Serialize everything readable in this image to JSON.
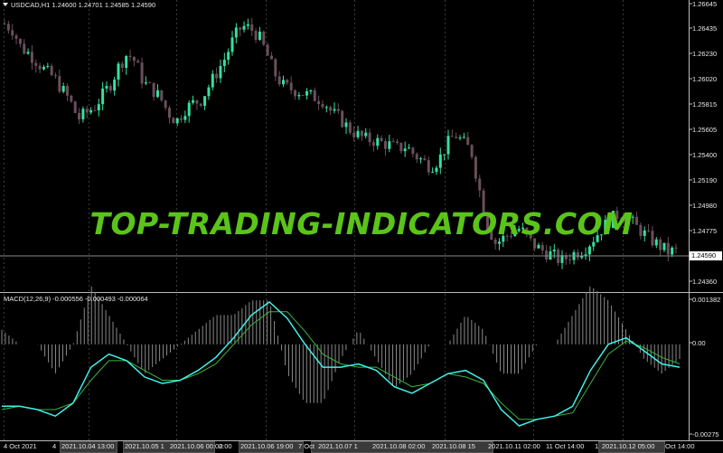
{
  "header": {
    "symbol_timeframe": "USDCAD,H1",
    "ohlc": "1.24600 1.24701 1.24585 1.24590"
  },
  "watermark": "TOP-TRADING-INDICATORS.COM",
  "current_price": "1.24590",
  "price_axis": {
    "labels": [
      "1.26645",
      "1.26435",
      "1.26230",
      "1.26020",
      "1.25815",
      "1.25605",
      "1.25400",
      "1.25190",
      "1.24980",
      "1.24775",
      "1.24360"
    ]
  },
  "macd": {
    "title": "MACD(12,26,9) -0.000556 -0.000493 -0.000064",
    "axis_labels": [
      "0.001382",
      "0.00",
      "-0.00275"
    ]
  },
  "time_axis": {
    "labels": [
      "4 Oct 2021",
      "4",
      "2021.10.04 13:00",
      "2021.10.05 1",
      "2021.10.06 00:00",
      "2:00",
      "2021.10.06 19:00",
      "7 Oct",
      "2021.10.07 1",
      "2021.10.08 02:00",
      "2021.10.08 15",
      "2021.10.11 02:00",
      "11 Oct 14:00",
      "1",
      "2021.10.12 05:00",
      "Oct 14:00"
    ]
  },
  "colors": {
    "bull": "#35e0a0",
    "bear": "#6a4e5c",
    "macd_line": "#40f0e8",
    "signal_line": "#3cb43c",
    "histogram": "#8a8a8a",
    "grid": "#3a3a3a",
    "watermark": "#5bc41a"
  },
  "chart_data": [
    {
      "type": "candlestick",
      "title": "USDCAD,H1",
      "ylim": [
        1.2425,
        1.267
      ],
      "close_series": [
        1.265,
        1.2645,
        1.263,
        1.2625,
        1.2618,
        1.261,
        1.2605,
        1.2595,
        1.2585,
        1.257,
        1.2575,
        1.258,
        1.259,
        1.26,
        1.2615,
        1.2625,
        1.2618,
        1.26,
        1.2595,
        1.2588,
        1.2575,
        1.2568,
        1.2578,
        1.2583,
        1.2586,
        1.2598,
        1.261,
        1.2622,
        1.2638,
        1.2648,
        1.2646,
        1.264,
        1.2625,
        1.2608,
        1.2598,
        1.2595,
        1.2593,
        1.259,
        1.2588,
        1.2585,
        1.2575,
        1.257,
        1.2562,
        1.2557,
        1.2553,
        1.2552,
        1.255,
        1.2548,
        1.2545,
        1.2547,
        1.254,
        1.2535,
        1.253,
        1.2535,
        1.2548,
        1.2557,
        1.255,
        1.2543,
        1.251,
        1.248,
        1.2465,
        1.247,
        1.2475,
        1.2478,
        1.2468,
        1.2462,
        1.2458,
        1.2455,
        1.245,
        1.2455,
        1.2458,
        1.2462,
        1.247,
        1.2478,
        1.2485,
        1.249,
        1.2488,
        1.248,
        1.2474,
        1.2468,
        1.2463,
        1.2458,
        1.2459
      ]
    },
    {
      "type": "line",
      "title": "MACD(12,26,9)",
      "ylim": [
        -0.00275,
        0.001382
      ],
      "series": [
        {
          "name": "MACD",
          "values": [
            -0.0019,
            -0.0019,
            -0.002,
            -0.0022,
            -0.0018,
            -0.0007,
            -0.0003,
            -0.0005,
            -0.001,
            -0.0012,
            -0.0011,
            -0.0008,
            -0.0004,
            0.0002,
            0.0009,
            0.0013,
            0.0008,
            0.0,
            -0.0007,
            -0.0007,
            -0.0006,
            -0.0008,
            -0.0013,
            -0.0015,
            -0.0012,
            -0.0009,
            -0.0008,
            -0.0011,
            -0.002,
            -0.0025,
            -0.0023,
            -0.0022,
            -0.0019,
            -0.0008,
            0.0,
            0.0002,
            -0.0002,
            -0.0006,
            -0.0007
          ]
        },
        {
          "name": "Signal",
          "values": [
            -0.002,
            -0.0019,
            -0.002,
            -0.002,
            -0.0018,
            -0.0011,
            -0.0005,
            -0.0005,
            -0.0008,
            -0.0011,
            -0.0011,
            -0.0009,
            -0.0006,
            0.0,
            0.0006,
            0.001,
            0.001,
            0.0004,
            -0.0003,
            -0.0006,
            -0.0007,
            -0.0007,
            -0.001,
            -0.0013,
            -0.0012,
            -0.0009,
            -0.001,
            -0.0012,
            -0.0018,
            -0.0023,
            -0.0023,
            -0.0022,
            -0.0021,
            -0.0012,
            -0.0003,
            0.0001,
            -0.0001,
            -0.0004,
            -0.0006
          ]
        }
      ]
    }
  ]
}
